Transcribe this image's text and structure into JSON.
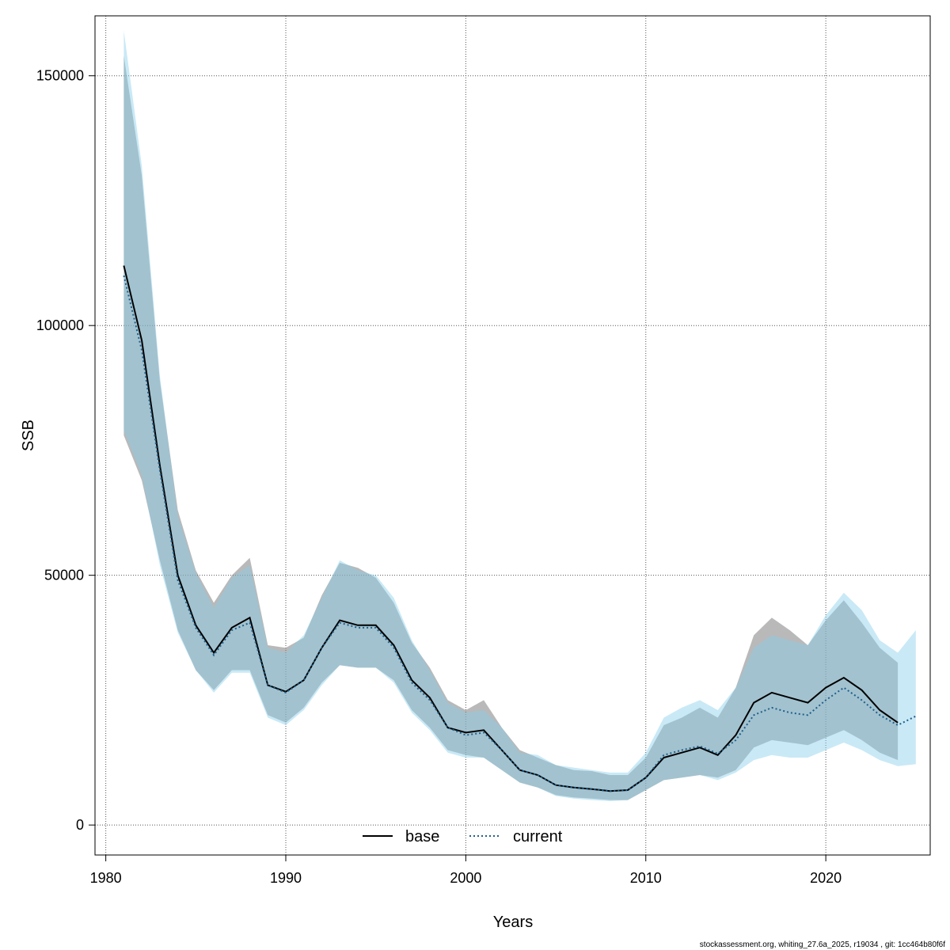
{
  "chart_data": {
    "type": "line",
    "xlabel": "Years",
    "ylabel": "SSB",
    "xlim": [
      1979.4,
      1025.5
    ],
    "ylim": [
      -6000,
      162000
    ],
    "x_ticks": [
      1980,
      1990,
      2000,
      2010,
      2020
    ],
    "y_ticks": [
      0,
      50000,
      100000,
      150000
    ],
    "x_tick_labels": [
      "1980",
      "1990",
      "2000",
      "2010",
      "2020"
    ],
    "y_tick_labels": [
      "0",
      "50000",
      "100000",
      "150000"
    ],
    "grid": true,
    "legend_position": "bottom",
    "legend": [
      {
        "label": "base",
        "color": "#000000",
        "dash": "solid"
      },
      {
        "label": "current",
        "color": "#1f5f8b",
        "dash": "dotted"
      }
    ],
    "colors": {
      "base_band": "#7f7f7f",
      "current_band": "#87ceeb",
      "base_line": "#000000",
      "current_line": "#1f5f8b"
    },
    "series": [
      {
        "name": "base",
        "x": [
          1981,
          1982,
          1983,
          1984,
          1985,
          1986,
          1987,
          1988,
          1989,
          1990,
          1991,
          1992,
          1993,
          1994,
          1995,
          1996,
          1997,
          1998,
          1999,
          2000,
          2001,
          2002,
          2003,
          2004,
          2005,
          2006,
          2007,
          2008,
          2009,
          2010,
          2011,
          2012,
          2013,
          2014,
          2015,
          2016,
          2017,
          2018,
          2019,
          2020,
          2021,
          2022,
          2023,
          2024
        ],
        "y": [
          112000,
          97000,
          72000,
          50000,
          40000,
          34500,
          39500,
          41500,
          28000,
          26700,
          29000,
          35500,
          41000,
          40000,
          40000,
          36000,
          29000,
          25500,
          19500,
          18500,
          19000,
          15000,
          11000,
          10000,
          8000,
          7500,
          7200,
          6800,
          7000,
          9500,
          13500,
          14500,
          15500,
          14000,
          18000,
          24500,
          26500,
          25500,
          24500,
          27500,
          29500,
          27000,
          23000,
          20500
        ],
        "lower": [
          78000,
          69000,
          53000,
          39000,
          31000,
          27000,
          31000,
          31000,
          22000,
          20500,
          23500,
          28500,
          32000,
          31500,
          31500,
          29000,
          23000,
          19500,
          15000,
          14000,
          13500,
          11000,
          8500,
          7500,
          6000,
          5500,
          5300,
          5000,
          5000,
          7000,
          9000,
          9500,
          10000,
          9500,
          11000,
          15500,
          17000,
          16500,
          16000,
          17500,
          19000,
          17000,
          14500,
          13000
        ],
        "upper": [
          154000,
          130000,
          89000,
          63000,
          51000,
          44500,
          50000,
          53500,
          36000,
          35500,
          37500,
          46000,
          52500,
          51500,
          49500,
          44500,
          36500,
          31500,
          25000,
          23000,
          25000,
          19500,
          15000,
          13500,
          12000,
          11000,
          10800,
          10000,
          10000,
          13500,
          20000,
          21500,
          23500,
          21500,
          27500,
          38000,
          41500,
          39000,
          36000,
          41000,
          45000,
          40500,
          35500,
          32500
        ]
      },
      {
        "name": "current",
        "x": [
          1981,
          1982,
          1983,
          1984,
          1985,
          1986,
          1987,
          1988,
          1989,
          1990,
          1991,
          1992,
          1993,
          1994,
          1995,
          1996,
          1997,
          1998,
          1999,
          2000,
          2001,
          2002,
          2003,
          2004,
          2005,
          2006,
          2007,
          2008,
          2009,
          2010,
          2011,
          2012,
          2013,
          2014,
          2015,
          2016,
          2017,
          2018,
          2019,
          2020,
          2021,
          2022,
          2023,
          2024,
          2025
        ],
        "y": [
          110000,
          95000,
          71000,
          49000,
          39500,
          34000,
          39000,
          40500,
          28000,
          26500,
          29000,
          35500,
          40500,
          39500,
          39500,
          35500,
          28500,
          25000,
          19500,
          18000,
          18500,
          15000,
          11000,
          10000,
          8000,
          7500,
          7200,
          6800,
          7000,
          9500,
          14000,
          15000,
          15800,
          14300,
          17000,
          22000,
          23500,
          22500,
          22000,
          25000,
          27500,
          25000,
          22000,
          20000,
          21800
        ],
        "lower": [
          79000,
          70000,
          52000,
          38500,
          31000,
          26500,
          30500,
          30500,
          21500,
          20000,
          23000,
          28000,
          32000,
          31500,
          31500,
          28500,
          22500,
          19000,
          14500,
          13500,
          13500,
          11000,
          8500,
          7500,
          5800,
          5300,
          5000,
          4800,
          5000,
          7000,
          9000,
          9500,
          10000,
          9000,
          10500,
          13000,
          14000,
          13500,
          13500,
          15000,
          16500,
          15000,
          13000,
          11800,
          12200
        ],
        "upper": [
          159000,
          132000,
          90000,
          62000,
          50500,
          43500,
          49500,
          52000,
          35500,
          34500,
          38000,
          45500,
          53000,
          51000,
          50000,
          45500,
          37000,
          31000,
          24500,
          22500,
          23000,
          19500,
          14500,
          14000,
          12000,
          11500,
          11000,
          10500,
          10500,
          14500,
          21500,
          23500,
          25000,
          23000,
          27500,
          35500,
          38000,
          37000,
          36000,
          42000,
          46500,
          43000,
          37000,
          34500,
          39000
        ]
      }
    ]
  },
  "footer_text": "stockassessment.org, whiting_27.6a_2025, r19034 , git: 1cc464b80f6f"
}
